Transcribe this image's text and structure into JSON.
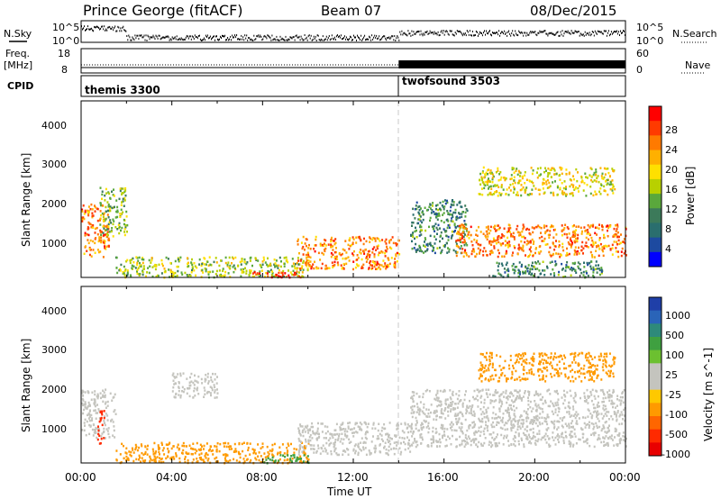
{
  "header": {
    "station": "Prince George (fitACF)",
    "beam": "Beam 07",
    "date": "08/Dec/2015"
  },
  "summary": {
    "nsky_label": "N.Sky",
    "nsky_ticks": [
      "10^5",
      "10^0"
    ],
    "nsearch_label": "N.Search",
    "nsearch_ticks": [
      "10^5",
      "10^0"
    ],
    "freq_label_line1": "Freq.",
    "freq_label_line2": "[MHz]",
    "freq_ticks": [
      "18",
      "8"
    ],
    "nave_label": "Nave",
    "nave_ticks": [
      "60",
      "0"
    ],
    "cpid_label": "CPID",
    "programs": [
      {
        "name": "themis 3300",
        "start_hour": 0
      },
      {
        "name": "twofsound 3503",
        "start_hour": 14
      }
    ]
  },
  "panels": {
    "ylabel": "Slant Range [km]",
    "xlabel": "Time UT",
    "yticks": [
      "4000",
      "3000",
      "2000",
      "1000"
    ],
    "xticks": [
      "00:00",
      "04:00",
      "08:00",
      "12:00",
      "16:00",
      "20:00",
      "00:00"
    ]
  },
  "power_scale": {
    "label": "Power [dB]",
    "ticks": [
      "28",
      "24",
      "20",
      "16",
      "12",
      "8",
      "4"
    ],
    "colors": [
      "#ff0000",
      "#ff3a00",
      "#ff7a00",
      "#ffb000",
      "#ffe000",
      "#b8d000",
      "#5aa83c",
      "#3c7a5a",
      "#2a6e6e",
      "#1d4aa0",
      "#0000ff"
    ]
  },
  "velocity_scale": {
    "label": "Velocity [m s^-1]",
    "ticks": [
      "1000",
      "500",
      "100",
      "25",
      "-25",
      "-100",
      "-500",
      "-1000"
    ],
    "colors": [
      "#1f3fa8",
      "#2a64b8",
      "#2e8a7a",
      "#3fa040",
      "#6cc030",
      "#c4c4be",
      "#c4c4be",
      "#ffc800",
      "#ff9a00",
      "#ff6600",
      "#ff2a00",
      "#e80000"
    ]
  },
  "chart_data": [
    {
      "type": "heatmap",
      "title": "Power",
      "xlabel": "Time UT",
      "ylabel": "Slant Range [km]",
      "xlim": [
        0,
        24
      ],
      "ylim": [
        180,
        4500
      ],
      "units": "dB",
      "regions": [
        {
          "t": [
            0.0,
            1.2
          ],
          "r": [
            700,
            2000
          ],
          "value": 24
        },
        {
          "t": [
            0.8,
            2.0
          ],
          "r": [
            1200,
            2400
          ],
          "value": 14
        },
        {
          "t": [
            1.5,
            10.0
          ],
          "r": [
            200,
            700
          ],
          "value": 16
        },
        {
          "t": [
            7.5,
            9.8
          ],
          "r": [
            200,
            350
          ],
          "value": 28
        },
        {
          "t": [
            9.5,
            14.0
          ],
          "r": [
            400,
            1200
          ],
          "value": 24
        },
        {
          "t": [
            14.5,
            17.0
          ],
          "r": [
            800,
            2100
          ],
          "value": 10
        },
        {
          "t": [
            16.5,
            24.0
          ],
          "r": [
            700,
            1500
          ],
          "value": 24
        },
        {
          "t": [
            17.5,
            23.5
          ],
          "r": [
            2200,
            2900
          ],
          "value": 18
        },
        {
          "t": [
            18.0,
            23.0
          ],
          "r": [
            200,
            600
          ],
          "value": 10
        }
      ],
      "colorbar_ticks": [
        4,
        8,
        12,
        16,
        20,
        24,
        28
      ]
    },
    {
      "type": "heatmap",
      "title": "Velocity",
      "xlabel": "Time UT",
      "ylabel": "Slant Range [km]",
      "xlim": [
        0,
        24
      ],
      "ylim": [
        180,
        4500
      ],
      "units": "m s^-1",
      "regions": [
        {
          "t": [
            0.0,
            1.5
          ],
          "r": [
            800,
            2000
          ],
          "value": -20
        },
        {
          "t": [
            0.7,
            1.0
          ],
          "r": [
            600,
            1500
          ],
          "value": -800
        },
        {
          "t": [
            1.5,
            10.0
          ],
          "r": [
            200,
            700
          ],
          "value": -150
        },
        {
          "t": [
            4.0,
            6.0
          ],
          "r": [
            1800,
            2400
          ],
          "value": 0
        },
        {
          "t": [
            9.5,
            14.5
          ],
          "r": [
            400,
            1200
          ],
          "value": 0
        },
        {
          "t": [
            14.5,
            24.0
          ],
          "r": [
            600,
            2000
          ],
          "value": 0
        },
        {
          "t": [
            17.5,
            23.5
          ],
          "r": [
            2200,
            2900
          ],
          "value": -300
        },
        {
          "t": [
            8.0,
            10.0
          ],
          "r": [
            200,
            400
          ],
          "value": 120
        }
      ],
      "colorbar_ticks": [
        -1000,
        -500,
        -100,
        -25,
        25,
        100,
        500,
        1000
      ]
    }
  ]
}
